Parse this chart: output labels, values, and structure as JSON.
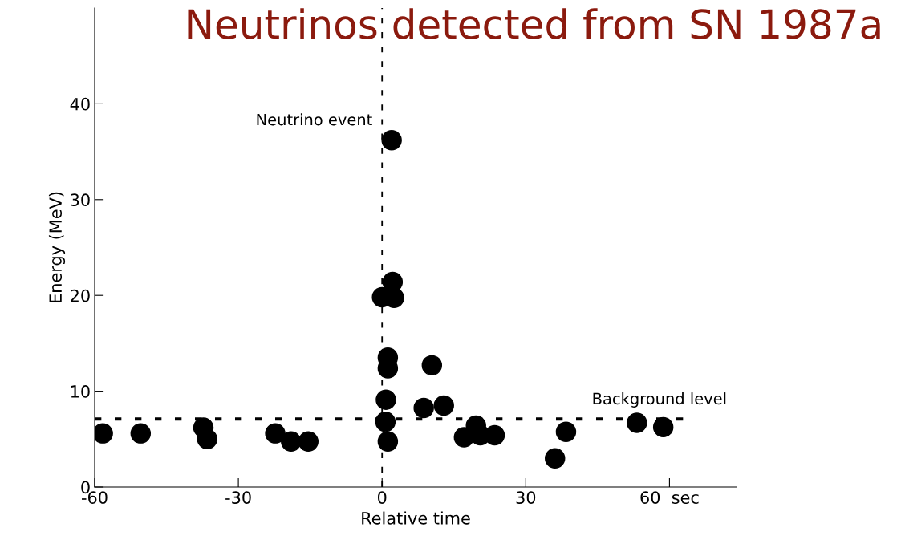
{
  "chart_data": {
    "type": "scatter",
    "title": "Neutrinos detected from SN 1987a",
    "xlabel": "Relative time",
    "ylabel": "Energy (MeV)",
    "x": [
      -58.3,
      -50.4,
      -37.3,
      -36.5,
      -22.3,
      -19,
      -15.4,
      2.0,
      0,
      2.2,
      2.5,
      1.2,
      1.2,
      0.8,
      0.7,
      1.2,
      10.4,
      8.7,
      12.9,
      17.1,
      19.6,
      20.5,
      23.5,
      36.1,
      38.4,
      53.2,
      58.7
    ],
    "series": [
      {
        "color": "#000000",
        "values": [
          5.6,
          5.6,
          6.2,
          5.0,
          5.6,
          4.75,
          4.75,
          36.2,
          19.8,
          21.4,
          19.75,
          13.5,
          12.4,
          9.1,
          6.8,
          4.75,
          12.7,
          8.25,
          8.5,
          5.2,
          6.4,
          5.4,
          5.4,
          3.0,
          5.75,
          6.7,
          6.25
        ]
      }
    ],
    "xlim": [
      -60,
      74
    ],
    "ylim": [
      0,
      50
    ],
    "xticks": [
      {
        "value": -60,
        "label": "-60"
      },
      {
        "value": -30,
        "label": "-30"
      },
      0,
      30,
      {
        "value": 60,
        "label": "60  sec"
      }
    ],
    "yticks": [
      0,
      10,
      20,
      30,
      40
    ],
    "ref_lines": [
      {
        "axis": "y",
        "value": 7.1,
        "label": "Background level",
        "line_style": "dotted",
        "color": "#000000"
      },
      {
        "axis": "x",
        "value": 0,
        "label": "Neutrino event",
        "line_style": "dashed",
        "color": "#000000"
      }
    ],
    "marker": "circle",
    "grid": false,
    "legend": false
  }
}
